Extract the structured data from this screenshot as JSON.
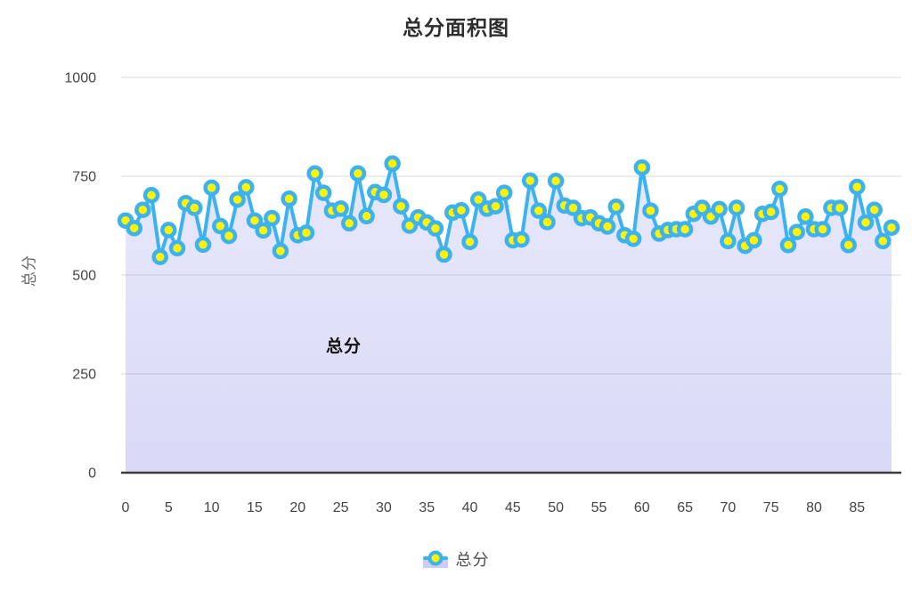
{
  "chart_data": {
    "type": "area",
    "title": "总分面积图",
    "series_name": "总分",
    "annotation": "总分",
    "ylabel": "总分",
    "xlabel": "",
    "ylim": [
      0,
      1000
    ],
    "yticks": [
      0,
      250,
      500,
      750,
      1000
    ],
    "xticks": [
      0,
      5,
      10,
      15,
      20,
      25,
      30,
      35,
      40,
      45,
      50,
      55,
      60,
      65,
      70,
      75,
      80,
      85
    ],
    "x": [
      0,
      1,
      2,
      3,
      4,
      5,
      6,
      7,
      8,
      9,
      10,
      11,
      12,
      13,
      14,
      15,
      16,
      17,
      18,
      19,
      20,
      21,
      22,
      23,
      24,
      25,
      26,
      27,
      28,
      29,
      30,
      31,
      32,
      33,
      34,
      35,
      36,
      37,
      38,
      39,
      40,
      41,
      42,
      43,
      44,
      45,
      46,
      47,
      48,
      49,
      50,
      51,
      52,
      53,
      54,
      55,
      56,
      57,
      58,
      59,
      60,
      61,
      62,
      63,
      64,
      65,
      66,
      67,
      68,
      69,
      70,
      71,
      72,
      73,
      74,
      75,
      76,
      77,
      78,
      79,
      80,
      81,
      82,
      83,
      84,
      85,
      86,
      87,
      88,
      89
    ],
    "values": [
      638,
      619,
      665,
      702,
      546,
      614,
      568,
      682,
      670,
      577,
      721,
      624,
      599,
      691,
      722,
      638,
      613,
      644,
      561,
      693,
      601,
      607,
      757,
      708,
      663,
      668,
      631,
      757,
      649,
      710,
      703,
      782,
      674,
      625,
      646,
      633,
      618,
      552,
      658,
      664,
      584,
      691,
      668,
      674,
      708,
      588,
      590,
      739,
      663,
      634,
      738,
      676,
      670,
      644,
      646,
      631,
      623,
      673,
      601,
      592,
      772,
      663,
      605,
      614,
      616,
      616,
      655,
      670,
      648,
      667,
      586,
      670,
      574,
      588,
      655,
      660,
      718,
      576,
      609,
      648,
      616,
      616,
      670,
      670,
      576,
      723,
      633,
      665,
      586,
      620
    ],
    "grid": {
      "horizontal": true,
      "vertical": false
    },
    "legend_position": "bottom",
    "colors": {
      "line": "#3db2f0",
      "point_fill": "#fdf303",
      "point_stroke": "#3db2f0",
      "area_top": "rgba(116,116,228,0.17)",
      "area_bottom": "rgba(116,116,228,0.27)",
      "grid": "#e6e6e6",
      "axis": "#3c3c3c",
      "tick_label": "#444444",
      "title": "#2e2e2e",
      "axis_title": "#666666",
      "legend_text": "#4d4d4d",
      "legend_box": "#cdcdf0",
      "annotation": "#111111"
    }
  }
}
